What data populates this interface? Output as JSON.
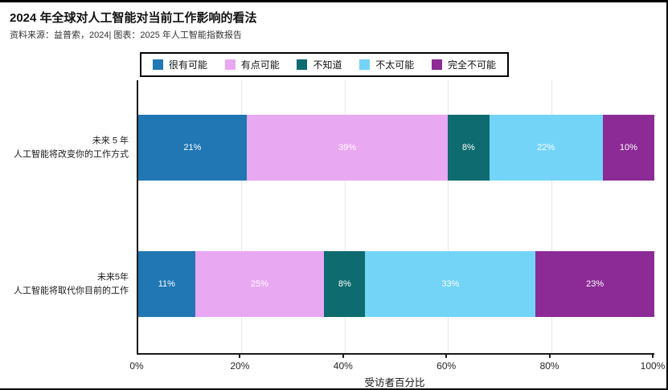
{
  "title": "2024 年全球对人工智能对当前工作影响的看法",
  "subtitle": "资料来源：益普索，2024| 图表：2025 年人工智能指数报告",
  "chart_data": {
    "type": "bar",
    "orientation": "horizontal_stacked",
    "categories": [
      [
        "未来 5 年",
        "人工智能将改变你的工作方式"
      ],
      [
        "未来5年",
        "人工智能将取代你目前的工作"
      ]
    ],
    "series": [
      {
        "name": "很有可能",
        "color": "#2077b4",
        "values": [
          21,
          11
        ]
      },
      {
        "name": "有点可能",
        "color": "#e9a8f2",
        "values": [
          39,
          25
        ]
      },
      {
        "name": "不知道",
        "color": "#0e6b70",
        "values": [
          8,
          8
        ]
      },
      {
        "name": "不太可能",
        "color": "#74d4f8",
        "values": [
          22,
          33
        ]
      },
      {
        "name": "完全不可能",
        "color": "#8c2b95",
        "values": [
          10,
          23
        ]
      }
    ],
    "xlabel": "受访者百分比",
    "x_ticks": [
      "0%",
      "20%",
      "40%",
      "60%",
      "80%",
      "100%"
    ],
    "x_tick_values": [
      0,
      20,
      40,
      60,
      80,
      100
    ],
    "xlim": [
      0,
      100
    ],
    "gridline_values": [
      20,
      40,
      60,
      80
    ],
    "grid": "vertical",
    "legend_position": "top",
    "value_label_suffix": "%",
    "value_label_color": "#ffffff"
  }
}
